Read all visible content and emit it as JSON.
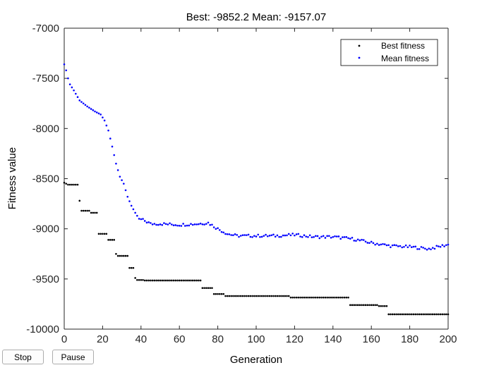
{
  "title": "Best: -9852.2 Mean: -9157.07",
  "buttons": {
    "stop_label": "Stop",
    "pause_label": "Pause"
  },
  "chart_data": {
    "type": "scatter",
    "title": "Best: -9852.2 Mean: -9157.07",
    "xlabel": "Generation",
    "ylabel": "Fitness value",
    "xlim": [
      0,
      200
    ],
    "ylim": [
      -10000,
      -7000
    ],
    "xticks": [
      0,
      20,
      40,
      60,
      80,
      100,
      120,
      140,
      160,
      180,
      200
    ],
    "yticks": [
      -10000,
      -9500,
      -9000,
      -8500,
      -8000,
      -7500,
      -7000
    ],
    "legend": {
      "position": "top-right",
      "entries": [
        "Best fitness",
        "Mean fitness"
      ]
    },
    "grid": false,
    "series": [
      {
        "name": "Best fitness",
        "color": "#000000",
        "breakpoints": [
          [
            0,
            -8540
          ],
          [
            1,
            -8550
          ],
          [
            2,
            -8560
          ],
          [
            8,
            -8720
          ],
          [
            9,
            -8820
          ],
          [
            14,
            -8840
          ],
          [
            18,
            -9050
          ],
          [
            23,
            -9110
          ],
          [
            27,
            -9250
          ],
          [
            28,
            -9270
          ],
          [
            34,
            -9390
          ],
          [
            37,
            -9490
          ],
          [
            38,
            -9510
          ],
          [
            42,
            -9515
          ],
          [
            72,
            -9590
          ],
          [
            78,
            -9650
          ],
          [
            84,
            -9670
          ],
          [
            118,
            -9685
          ],
          [
            149,
            -9760
          ],
          [
            164,
            -9770
          ],
          [
            169,
            -9852.2
          ],
          [
            200,
            -9852.2
          ]
        ]
      },
      {
        "name": "Mean fitness",
        "color": "#0000ff",
        "anchors": [
          [
            0,
            -7360
          ],
          [
            1,
            -7420
          ],
          [
            2,
            -7500
          ],
          [
            3,
            -7560
          ],
          [
            5,
            -7620
          ],
          [
            8,
            -7720
          ],
          [
            12,
            -7780
          ],
          [
            16,
            -7830
          ],
          [
            19,
            -7860
          ],
          [
            21,
            -7920
          ],
          [
            23,
            -8020
          ],
          [
            25,
            -8180
          ],
          [
            27,
            -8350
          ],
          [
            29,
            -8480
          ],
          [
            31,
            -8550
          ],
          [
            33,
            -8680
          ],
          [
            35,
            -8770
          ],
          [
            37,
            -8840
          ],
          [
            39,
            -8900
          ],
          [
            42,
            -8920
          ],
          [
            45,
            -8950
          ],
          [
            50,
            -8950
          ],
          [
            60,
            -8960
          ],
          [
            70,
            -8950
          ],
          [
            75,
            -8940
          ],
          [
            80,
            -9000
          ],
          [
            85,
            -9050
          ],
          [
            90,
            -9070
          ],
          [
            100,
            -9070
          ],
          [
            110,
            -9070
          ],
          [
            120,
            -9060
          ],
          [
            130,
            -9080
          ],
          [
            140,
            -9080
          ],
          [
            150,
            -9100
          ],
          [
            160,
            -9140
          ],
          [
            170,
            -9170
          ],
          [
            180,
            -9180
          ],
          [
            190,
            -9200
          ],
          [
            200,
            -9157.07
          ]
        ]
      }
    ]
  }
}
